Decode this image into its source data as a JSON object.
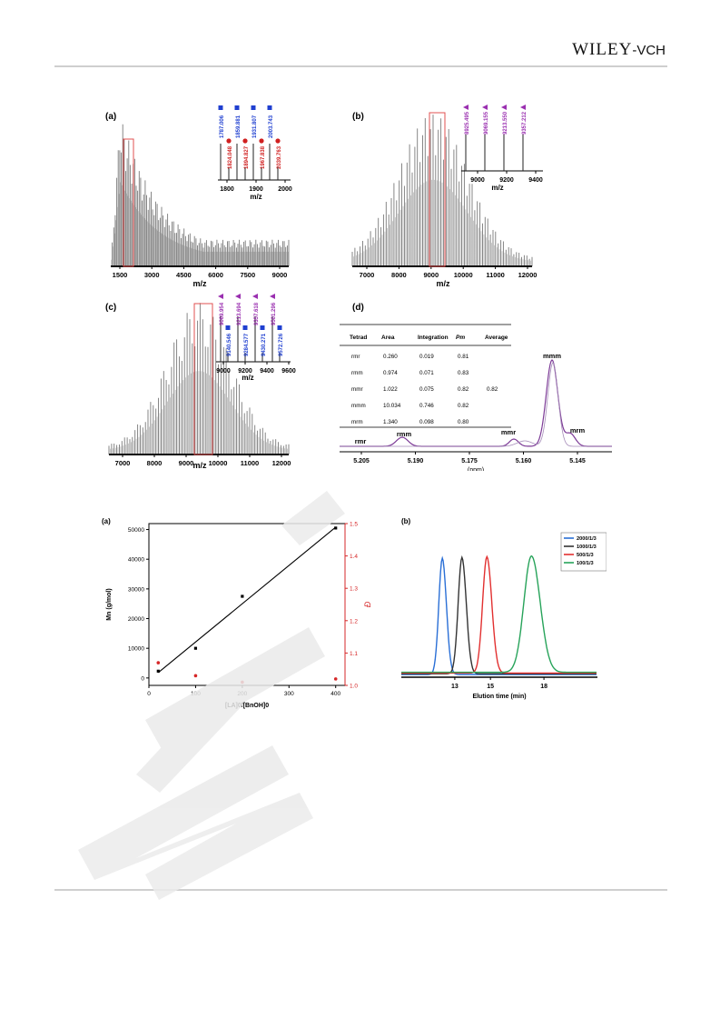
{
  "header": {
    "publisher": "WILEY",
    "suffix": "-VCH"
  },
  "figure_top": {
    "panel_a": {
      "label": "(a)",
      "xlabel": "m/z",
      "xticks": [
        "1500",
        "3000",
        "4500",
        "6000",
        "7500",
        "9000"
      ],
      "inset": {
        "xticks": [
          "1800",
          "1900",
          "2000"
        ],
        "xlabel": "m/z",
        "blue_peaks": [
          "1787.006",
          "1859.881",
          "1931.807",
          "2003.743"
        ],
        "red_peaks": [
          "1824.048",
          "1894.827",
          "1967.838",
          "2039.763"
        ]
      }
    },
    "panel_b": {
      "label": "(b)",
      "xlabel": "m/z",
      "xticks": [
        "7000",
        "8000",
        "9000",
        "10000",
        "11000",
        "12000"
      ],
      "inset": {
        "xticks": [
          "9000",
          "9200",
          "9400"
        ],
        "xlabel": "m/z",
        "purple_peaks": [
          "8925.495",
          "9069.155",
          "9213.550",
          "9357.212"
        ]
      }
    },
    "panel_c": {
      "label": "(c)",
      "xlabel": "m/z",
      "xticks": [
        "7000",
        "8000",
        "9000",
        "10000",
        "11000",
        "12000"
      ],
      "inset": {
        "xticks": [
          "9000",
          "9200",
          "9400",
          "9600"
        ],
        "xlabel": "m/z",
        "purple_peaks": [
          "9069.954",
          "9213.694",
          "9357.618",
          "9501.296"
        ],
        "blue_peaks": [
          "9140.546",
          "9284.577",
          "9430.271",
          "9572.726"
        ]
      }
    },
    "panel_d": {
      "label": "(d)",
      "xlabel": "(ppm)",
      "xticks": [
        "5.205",
        "5.190",
        "5.175",
        "5.160",
        "5.145"
      ],
      "peak_labels": [
        "rmr",
        "rmm",
        "mmr",
        "mmm",
        "mrm"
      ],
      "table": {
        "headers": [
          "Tetrad",
          "Area",
          "Integration",
          "Pm",
          "Average"
        ],
        "rows": [
          [
            "rmr",
            "0.260",
            "0.019",
            "0.81",
            ""
          ],
          [
            "rmm",
            "0.974",
            "0.071",
            "0.83",
            ""
          ],
          [
            "mmr",
            "1.022",
            "0.075",
            "0.82",
            "0.82"
          ],
          [
            "mmm",
            "10.034",
            "0.746",
            "0.82",
            ""
          ],
          [
            "mrm",
            "1.340",
            "0.098",
            "0.80",
            ""
          ]
        ]
      }
    }
  },
  "figure_bottom": {
    "panel_a": {
      "label": "(a)",
      "chart_data": {
        "type": "scatter",
        "xlabel": "[LA]0/[BnOH]0",
        "ylabel_left": "Mn (g/mol)",
        "ylabel_right": "Đ",
        "xlim": [
          0,
          420
        ],
        "ylim_left": [
          -2500,
          52000
        ],
        "ylim_right": [
          1.0,
          1.5
        ],
        "xticks": [
          "0",
          "100",
          "200",
          "300",
          "400"
        ],
        "yticks_left": [
          "0",
          "10000",
          "20000",
          "30000",
          "40000",
          "50000"
        ],
        "yticks_right": [
          "1.0",
          "1.1",
          "1.2",
          "1.3",
          "1.4",
          "1.5"
        ],
        "series": [
          {
            "axis": "left",
            "color": "#000000",
            "x": [
              20,
              100,
              200,
              400
            ],
            "y": [
              2300,
              10000,
              27500,
              50500
            ]
          },
          {
            "axis": "right",
            "color": "#d62728",
            "x": [
              20,
              100,
              200,
              400
            ],
            "y": [
              1.07,
              1.03,
              1.01,
              1.02
            ]
          }
        ],
        "fit_line": {
          "x": [
            20,
            400
          ],
          "y": [
            1800,
            50800
          ]
        }
      }
    },
    "panel_b": {
      "label": "(b)",
      "chart_data": {
        "type": "line",
        "xlabel": "Elution time (min)",
        "xticks": [
          "13",
          "15",
          "18"
        ],
        "xlim": [
          10,
          21
        ],
        "series": [
          {
            "name": "2000/1/3",
            "color": "#2a6fd6",
            "center": 12.3,
            "width": 0.28,
            "height": 1.0
          },
          {
            "name": "1000/1/3",
            "color": "#333333",
            "center": 13.4,
            "width": 0.3,
            "height": 1.0
          },
          {
            "name": "500/1/3",
            "color": "#e23030",
            "center": 14.8,
            "width": 0.34,
            "height": 1.0
          },
          {
            "name": "100/1/3",
            "color": "#27a35a",
            "center": 17.3,
            "width": 0.6,
            "height": 1.0
          }
        ]
      }
    }
  }
}
